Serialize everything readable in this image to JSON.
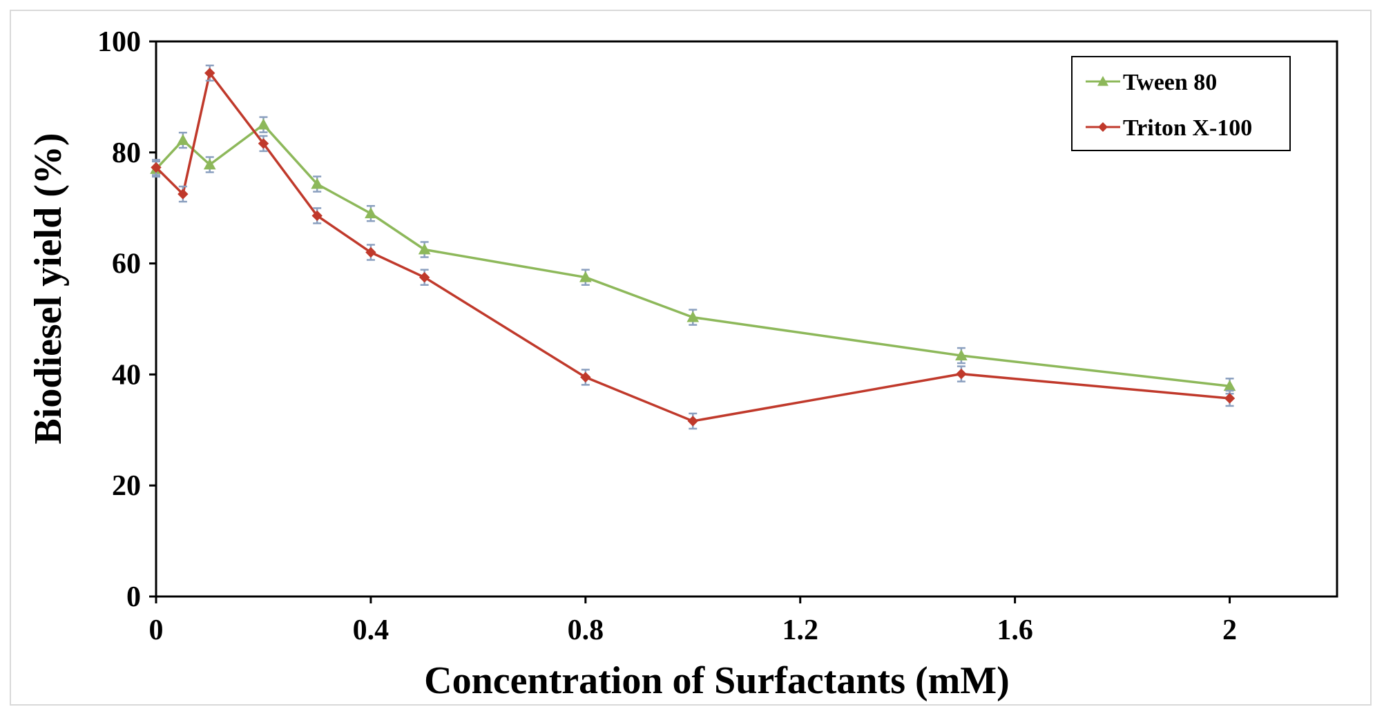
{
  "chart_data": {
    "type": "line",
    "title": "",
    "xlabel": "Concentration of Surfactants (mM)",
    "ylabel": "Biodiesel yield (%)",
    "xlim": [
      0,
      2.2
    ],
    "ylim": [
      0,
      100
    ],
    "xticks": [
      0,
      0.4,
      0.8,
      1.2,
      1.6,
      2
    ],
    "xtick_labels": [
      "0",
      "0.4",
      "0.8",
      "1.2",
      "1.6",
      "2"
    ],
    "yticks": [
      0,
      20,
      40,
      60,
      80,
      100
    ],
    "ytick_labels": [
      "0",
      "20",
      "40",
      "60",
      "80",
      "100"
    ],
    "grid": false,
    "legend_position": "top-right",
    "x": [
      0,
      0.05,
      0.1,
      0.2,
      0.3,
      0.4,
      0.5,
      0.8,
      1.0,
      1.5,
      2.0
    ],
    "series": [
      {
        "name": "Tween 80",
        "color": "#8db85a",
        "marker": "triangle",
        "values": [
          77.0,
          82.2,
          77.8,
          85.0,
          74.3,
          69.0,
          62.5,
          57.5,
          50.3,
          43.4,
          37.9
        ]
      },
      {
        "name": "Triton X-100",
        "color": "#c0392b",
        "marker": "diamond",
        "values": [
          77.3,
          72.5,
          94.3,
          81.6,
          68.6,
          62.0,
          57.5,
          39.5,
          31.6,
          40.1,
          35.7
        ]
      }
    ],
    "error_bar_color": "#8a9fbf"
  }
}
